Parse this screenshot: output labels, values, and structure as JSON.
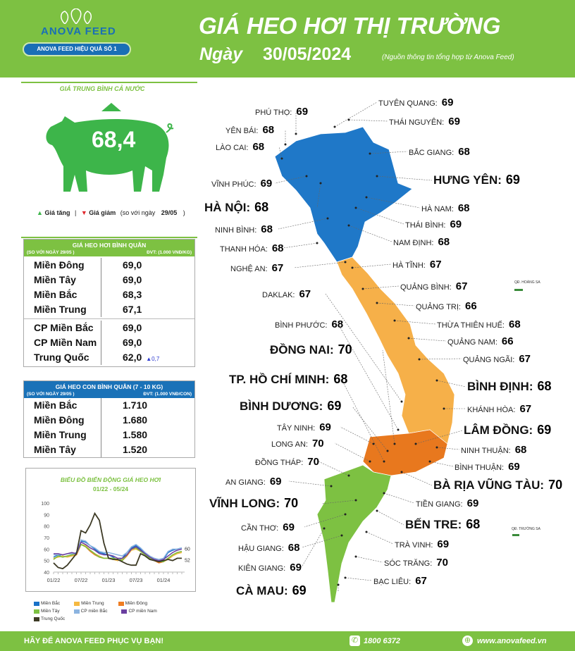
{
  "header": {
    "brand": "ANOVA FEED",
    "slogan": "ANOVA FEED HIỆU QUẢ SỐ 1",
    "title": "GIÁ HEO HƠI THỊ TRƯỜNG",
    "date_label": "Ngày",
    "date": "30/05/2024",
    "source": "(Nguồn thông tin tổng hợp từ Anova Feed)"
  },
  "national": {
    "title": "GIÁ TRUNG BÌNH CẢ NƯỚC",
    "value": "68,4",
    "trend": "up",
    "legend_up": "Giá tăng",
    "sep": "|",
    "legend_down": "Giá giảm",
    "compare": "(so với ngày",
    "compare_date": "29/05",
    "compare_end": ")",
    "colors": {
      "pig": "#3db54a",
      "up": "#3db54a",
      "down": "#e0262b"
    }
  },
  "live_table": {
    "title": "GIÁ HEO HƠI BÌNH QUÂN",
    "compare": "(SO VỚI NGÀY 29/05 )",
    "unit": "ĐVT: (1.000 VNĐ/KG)",
    "header_color": "#7dc142",
    "groups": [
      [
        {
          "region": "Miền Đông",
          "price": "69,0"
        },
        {
          "region": "Miền Tây",
          "price": "69,0"
        },
        {
          "region": "Miền Bắc",
          "price": "68,3"
        },
        {
          "region": "Miền Trung",
          "price": "67,1"
        }
      ],
      [
        {
          "region": "CP Miền Bắc",
          "price": "69,0"
        },
        {
          "region": "CP Miền Nam",
          "price": "69,0"
        },
        {
          "region": "Trung Quốc",
          "price": "62,0",
          "change": "▲0,7"
        }
      ]
    ]
  },
  "piglet_table": {
    "title": "GIÁ HEO CON BÌNH QUÂN (7 - 10 KG)",
    "compare": "(SO VỚI NGÀY 29/05 )",
    "unit": "ĐVT: (1.000 VNĐ/CON)",
    "header_color": "#1a72b8",
    "rows": [
      {
        "region": "Miền Bắc",
        "price": "1.710"
      },
      {
        "region": "Miền Đông",
        "price": "1.680"
      },
      {
        "region": "Miền Trung",
        "price": "1.580"
      },
      {
        "region": "Miền Tây",
        "price": "1.520"
      }
    ]
  },
  "chart_data": {
    "type": "line",
    "title": "BIỂU ĐỒ BIẾN ĐỘNG GIÁ HEO HƠI",
    "subtitle": "01/22 - 05/24",
    "x": [
      "01/22",
      "02/22",
      "03/22",
      "04/22",
      "05/22",
      "06/22",
      "07/22",
      "08/22",
      "09/22",
      "10/22",
      "11/22",
      "12/22",
      "01/23",
      "02/23",
      "03/23",
      "04/23",
      "05/23",
      "06/23",
      "07/23",
      "08/23",
      "09/23",
      "10/23",
      "11/23",
      "12/23",
      "01/24",
      "02/24",
      "03/24",
      "04/24",
      "05/24"
    ],
    "xticks": [
      "01/22",
      "07/22",
      "01/23",
      "07/23",
      "01/24"
    ],
    "yticks": [
      "40",
      "50",
      "60",
      "70",
      "80",
      "90",
      "100"
    ],
    "ylim": [
      40,
      100
    ],
    "grid": false,
    "legend": "bottom",
    "end_labels": [
      "60",
      "52"
    ],
    "series": [
      {
        "name": "Miền Bắc",
        "color": "#1a72c8",
        "values": [
          53,
          55,
          53,
          54,
          55,
          57,
          67,
          66,
          63,
          60,
          57,
          56,
          55,
          53,
          50,
          52,
          57,
          61,
          63,
          60,
          56,
          53,
          51,
          50,
          51,
          57,
          59,
          60,
          61
        ]
      },
      {
        "name": "Miền Trung",
        "color": "#f5b942",
        "values": [
          52,
          53,
          54,
          53,
          54,
          55,
          64,
          63,
          59,
          56,
          54,
          52,
          52,
          51,
          50,
          51,
          54,
          59,
          60,
          58,
          55,
          52,
          50,
          49,
          49,
          51,
          54,
          56,
          57
        ]
      },
      {
        "name": "Miền Đông",
        "color": "#ef7d22",
        "values": [
          51,
          54,
          53,
          54,
          55,
          55,
          64,
          62,
          58,
          55,
          53,
          52,
          52,
          52,
          51,
          50,
          54,
          60,
          61,
          58,
          55,
          52,
          50,
          48,
          49,
          52,
          55,
          57,
          58
        ]
      },
      {
        "name": "Miền Tây",
        "color": "#7dc142",
        "values": [
          51,
          54,
          53,
          54,
          55,
          56,
          64,
          62,
          59,
          56,
          53,
          52,
          52,
          52,
          51,
          50,
          55,
          60,
          61,
          58,
          55,
          52,
          50,
          49,
          49,
          52,
          55,
          57,
          58
        ]
      },
      {
        "name": "CP miền Bắc",
        "color": "#8cb4e0",
        "values": [
          55,
          55,
          55,
          56,
          56,
          56,
          68,
          67,
          63,
          61,
          58,
          57,
          57,
          56,
          55,
          54,
          57,
          62,
          64,
          61,
          57,
          54,
          52,
          51,
          52,
          58,
          60,
          60,
          61
        ]
      },
      {
        "name": "CP miền Nam",
        "color": "#6a3fa0",
        "values": [
          56,
          56,
          55,
          56,
          57,
          56,
          66,
          64,
          61,
          59,
          56,
          55,
          55,
          54,
          52,
          52,
          55,
          60,
          62,
          59,
          56,
          53,
          51,
          50,
          51,
          54,
          57,
          59,
          60
        ]
      },
      {
        "name": "Trung Quốc",
        "color": "#3d3a25",
        "values": [
          48,
          44,
          43,
          46,
          51,
          56,
          76,
          74,
          81,
          91,
          85,
          65,
          52,
          51,
          51,
          49,
          47,
          46,
          46,
          56,
          54,
          51,
          50,
          49,
          50,
          51,
          50,
          52,
          52
        ]
      }
    ]
  },
  "map": {
    "region_colors": {
      "north": "#1f78c8",
      "central": "#f6b049",
      "southeast": "#e8781e",
      "mekong": "#7dc142"
    },
    "islands": [
      "QĐ. HOÀNG SA",
      "QĐ. TRƯỜNG SA"
    ],
    "provinces": [
      {
        "name": "TUYÊN QUANG:",
        "value": "69"
      },
      {
        "name": "THÁI NGUYÊN:",
        "value": "69"
      },
      {
        "name": "BẮC GIANG:",
        "value": "68"
      },
      {
        "name": "HƯNG YÊN:",
        "value": "69",
        "big": true
      },
      {
        "name": "HÀ NAM:",
        "value": "68"
      },
      {
        "name": "THÁI BÌNH:",
        "value": "69"
      },
      {
        "name": "NAM ĐỊNH:",
        "value": "68"
      },
      {
        "name": "HÀ TĨNH:",
        "value": "67"
      },
      {
        "name": "QUẢNG BÌNH:",
        "value": "67"
      },
      {
        "name": "QUẢNG TRỊ:",
        "value": "66"
      },
      {
        "name": "THỪA THIÊN HUẾ:",
        "value": "68"
      },
      {
        "name": "QUẢNG NAM:",
        "value": "66"
      },
      {
        "name": "QUẢNG NGÃI:",
        "value": "67"
      },
      {
        "name": "BÌNH ĐỊNH:",
        "value": "68",
        "big": true
      },
      {
        "name": "KHÁNH HÒA:",
        "value": "67"
      },
      {
        "name": "LÂM ĐỒNG:",
        "value": "69",
        "big": true
      },
      {
        "name": "NINH THUẬN:",
        "value": "68"
      },
      {
        "name": "BÌNH THUẬN:",
        "value": "69"
      },
      {
        "name": "BÀ RỊA VŨNG TÀU:",
        "value": "70",
        "big": true
      },
      {
        "name": "TIỀN GIANG:",
        "value": "69"
      },
      {
        "name": "BẾN TRE:",
        "value": "68",
        "big": true
      },
      {
        "name": "TRÀ VINH:",
        "value": "69"
      },
      {
        "name": "SÓC TRĂNG:",
        "value": "70"
      },
      {
        "name": "BẠC LIÊU:",
        "value": "67"
      },
      {
        "name": "PHÚ THỌ:",
        "value": "69"
      },
      {
        "name": "YÊN BÁI:",
        "value": "68"
      },
      {
        "name": "LÀO CAI:",
        "value": "68"
      },
      {
        "name": "VĨNH PHÚC:",
        "value": "69"
      },
      {
        "name": "HÀ NỘI:",
        "value": "68",
        "big": true
      },
      {
        "name": "NINH BÌNH:",
        "value": "68"
      },
      {
        "name": "THANH HÓA:",
        "value": "68"
      },
      {
        "name": "NGHỆ AN:",
        "value": "67"
      },
      {
        "name": "DAKLAK:",
        "value": "67"
      },
      {
        "name": "BÌNH PHƯỚC:",
        "value": "68"
      },
      {
        "name": "ĐỒNG NAI:",
        "value": "70",
        "big": true
      },
      {
        "name": "TP. HỒ CHÍ MINH:",
        "value": "68",
        "big": true
      },
      {
        "name": "BÌNH DƯƠNG:",
        "value": "69",
        "big": true
      },
      {
        "name": "TÂY NINH:",
        "value": "69"
      },
      {
        "name": "LONG AN:",
        "value": "70"
      },
      {
        "name": "ĐỒNG THÁP:",
        "value": "70"
      },
      {
        "name": "AN GIANG:",
        "value": "69"
      },
      {
        "name": "VĨNH LONG:",
        "value": "70",
        "big": true
      },
      {
        "name": "CẦN THƠ:",
        "value": "69"
      },
      {
        "name": "HẬU GIANG:",
        "value": "68"
      },
      {
        "name": "KIÊN GIANG:",
        "value": "69"
      },
      {
        "name": "CÀ MAU:",
        "value": "69",
        "big": true
      }
    ]
  },
  "footer": {
    "slogan": "HÃY ĐỂ ANOVA FEED PHỤC VỤ BẠN!",
    "phone": "1800 6372",
    "website": "www.anovafeed.vn"
  }
}
